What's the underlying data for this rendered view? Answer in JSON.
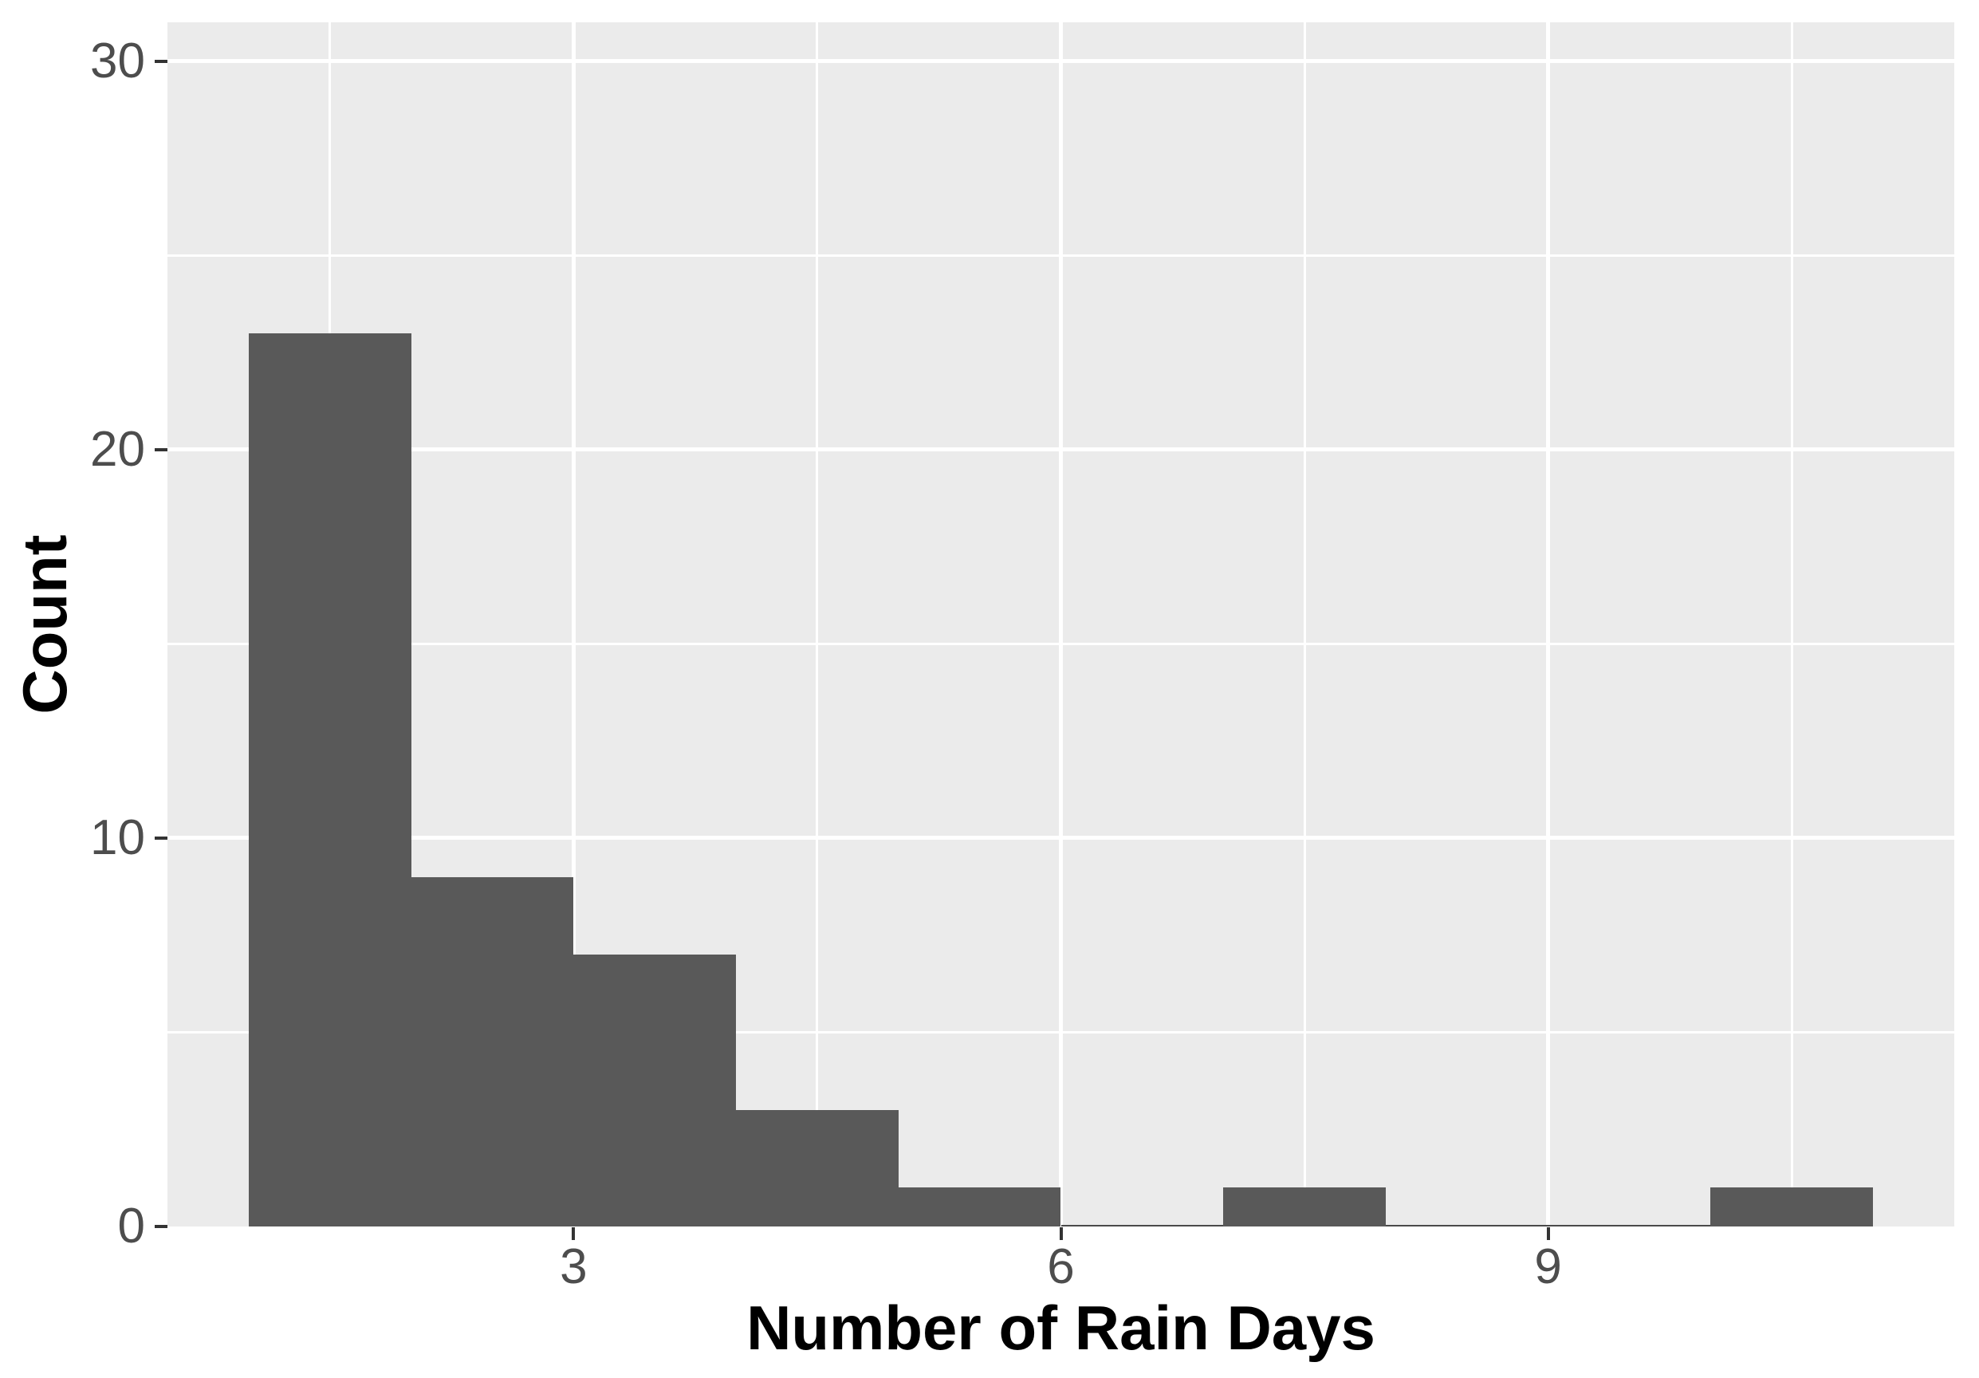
{
  "figure": {
    "x_axis_title": "Number of Rain Days",
    "y_axis_title": "Count"
  },
  "chart_data": {
    "type": "histogram",
    "title": "",
    "xlabel": "Number of Rain Days",
    "ylabel": "Count",
    "bin_width": 1,
    "bin_edges": [
      1,
      2,
      3,
      4,
      5,
      6,
      7,
      8,
      9,
      10,
      11
    ],
    "counts": [
      23,
      9,
      7,
      3,
      1,
      0,
      1,
      0,
      0,
      1
    ],
    "x_range": [
      0.5,
      11.5
    ],
    "y_range": [
      0,
      31
    ],
    "x_ticks": [
      3,
      6,
      9
    ],
    "x_tick_labels": [
      "3",
      "6",
      "9"
    ],
    "y_ticks": [
      0,
      10,
      20,
      30
    ],
    "y_tick_labels": [
      "0",
      "10",
      "20",
      "30"
    ],
    "x_major_gridlines": [
      3,
      6,
      9
    ],
    "x_minor_gridlines": [
      1.5,
      4.5,
      7.5,
      10.5
    ],
    "y_major_gridlines": [
      10,
      20,
      30
    ],
    "y_minor_gridlines": [
      5,
      15,
      25
    ],
    "grid": true,
    "legend_position": "none",
    "colors": {
      "bar_fill": "#595959",
      "zero_bin_line": "#4A4A4A",
      "panel_background": "#EBEBEB",
      "gridline": "#FFFFFF",
      "tick_mark": "#333333",
      "tick_label": "#4D4D4D",
      "axis_title": "#000000",
      "page_background": "#FFFFFF"
    }
  }
}
